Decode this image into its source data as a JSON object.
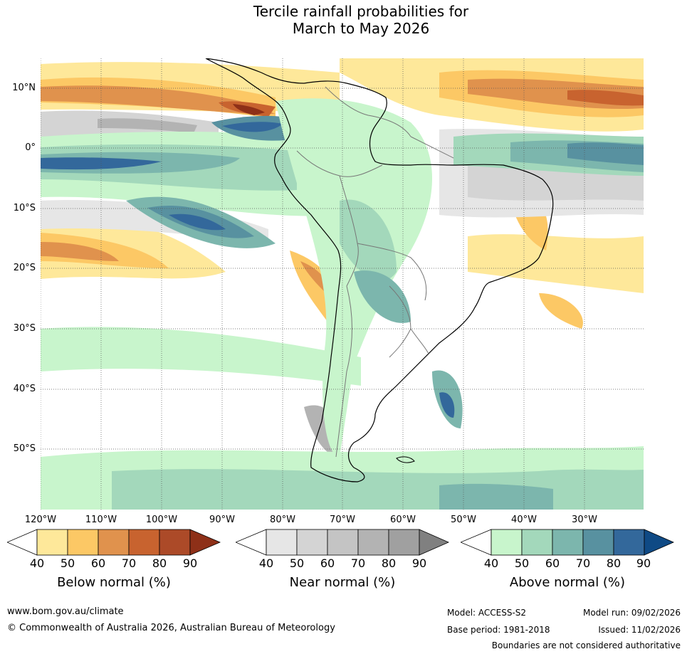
{
  "title": {
    "line1": "Tercile rainfall probabilities for",
    "line2": "March to May 2026"
  },
  "map": {
    "region": "South America",
    "latitude_labels": [
      "10°N",
      "0°",
      "10°S",
      "20°S",
      "30°S",
      "40°S",
      "50°S"
    ],
    "longitude_labels": [
      "120°W",
      "110°W",
      "100°W",
      "90°W",
      "80°W",
      "70°W",
      "60°W",
      "50°W",
      "40°W",
      "30°W"
    ]
  },
  "legend": {
    "below": {
      "title": "Below normal (%)",
      "ticks": [
        "40",
        "50",
        "60",
        "70",
        "80",
        "90"
      ],
      "colors": [
        "#ffffff",
        "#fee89a",
        "#fcc865",
        "#e0924d",
        "#c8632f",
        "#ac4a28",
        "#8e3018"
      ]
    },
    "near": {
      "title": "Near normal (%)",
      "ticks": [
        "40",
        "50",
        "60",
        "70",
        "80",
        "90"
      ],
      "colors": [
        "#ffffff",
        "#e6e6e6",
        "#d4d4d4",
        "#c4c4c4",
        "#b3b3b3",
        "#a0a0a0",
        "#808080"
      ]
    },
    "above": {
      "title": "Above normal (%)",
      "ticks": [
        "40",
        "50",
        "60",
        "70",
        "80",
        "90"
      ],
      "colors": [
        "#ffffff",
        "#c8f5cc",
        "#a3d8bb",
        "#7cb6ad",
        "#5891a0",
        "#33689b",
        "#0f4a85"
      ]
    }
  },
  "footer": {
    "url": "www.bom.gov.au/climate",
    "copyright": "© Commonwealth of Australia 2026, Australian Bureau of Meteorology",
    "model": "Model: ACCESS-S2",
    "base_period": "Base period: 1981-2018",
    "model_run": "Model run: 09/02/2026",
    "issued": "Issued: 11/02/2026",
    "disclaimer": "Boundaries are not considered authoritative"
  }
}
